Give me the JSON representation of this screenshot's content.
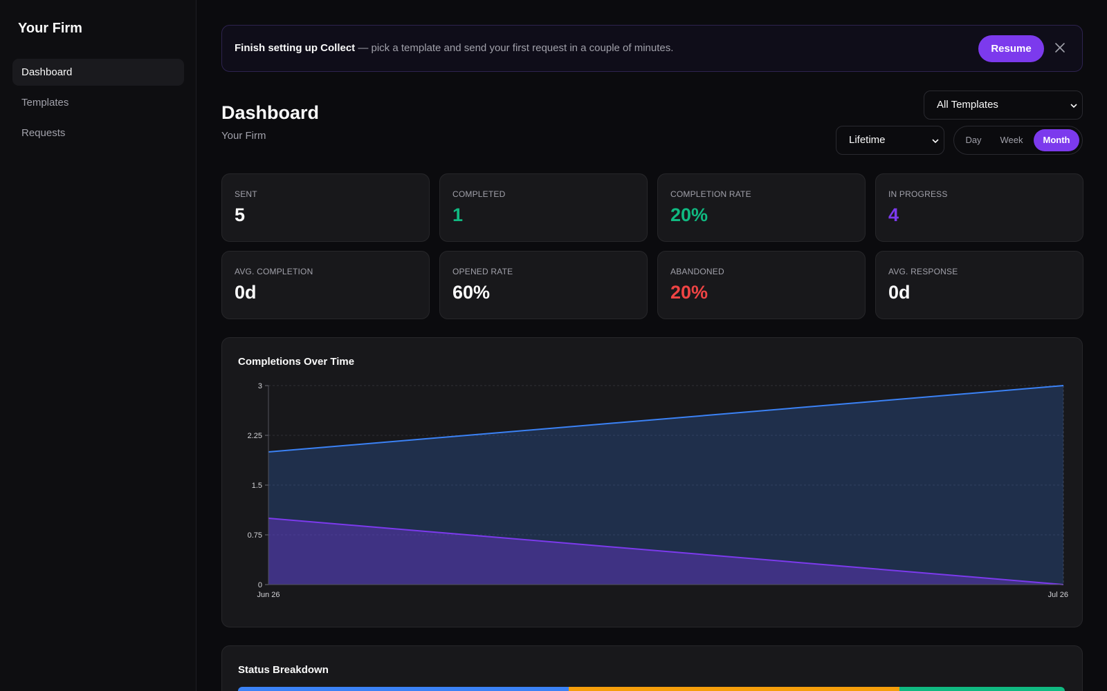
{
  "sidebar": {
    "brand": "Your Firm",
    "items": [
      {
        "label": "Dashboard",
        "active": true
      },
      {
        "label": "Templates",
        "active": false
      },
      {
        "label": "Requests",
        "active": false
      }
    ]
  },
  "banner": {
    "bold": "Finish setting up Collect",
    "text": " — pick a template and send your first request in a couple of minutes.",
    "resume_label": "Resume",
    "close_icon": "close-icon"
  },
  "header": {
    "title": "Dashboard",
    "subtitle": "Your Firm"
  },
  "filters": {
    "template": "All Templates",
    "range": "Lifetime",
    "granularity": {
      "options": [
        "Day",
        "Week",
        "Month"
      ],
      "selected": "Month"
    }
  },
  "colors": {
    "accent": "#7c3aed",
    "green": "#10b981",
    "red": "#ef4444",
    "purple": "#7c3aed",
    "blue": "#3b82f6",
    "orange": "#f59e0b"
  },
  "stats": [
    {
      "label": "SENT",
      "value": "5",
      "color": "#fafafa"
    },
    {
      "label": "COMPLETED",
      "value": "1",
      "color": "#10b981"
    },
    {
      "label": "COMPLETION RATE",
      "value": "20%",
      "color": "#10b981"
    },
    {
      "label": "IN PROGRESS",
      "value": "4",
      "color": "#7c3aed"
    },
    {
      "label": "AVG. COMPLETION",
      "value": "0d",
      "color": "#fafafa"
    },
    {
      "label": "OPENED RATE",
      "value": "60%",
      "color": "#fafafa"
    },
    {
      "label": "ABANDONED",
      "value": "20%",
      "color": "#ef4444"
    },
    {
      "label": "AVG. RESPONSE",
      "value": "0d",
      "color": "#fafafa"
    }
  ],
  "chart_title": "Completions Over Time",
  "chart_data": {
    "type": "area",
    "x": [
      "Jun 26",
      "Jul 26"
    ],
    "series": [
      {
        "values": [
          2,
          3
        ],
        "color": "#3b82f6"
      },
      {
        "values": [
          1,
          0
        ],
        "color": "#7c3aed"
      }
    ],
    "ylim": [
      0,
      3
    ],
    "yticks": [
      "0",
      "0.75",
      "1.5",
      "2.25",
      "3"
    ],
    "grid": true
  },
  "status_breakdown": {
    "title": "Status Breakdown",
    "segments": [
      {
        "fraction": 0.4,
        "color": "#3b82f6"
      },
      {
        "fraction": 0.4,
        "color": "#f59e0b"
      },
      {
        "fraction": 0.2,
        "color": "#10b981"
      }
    ]
  }
}
